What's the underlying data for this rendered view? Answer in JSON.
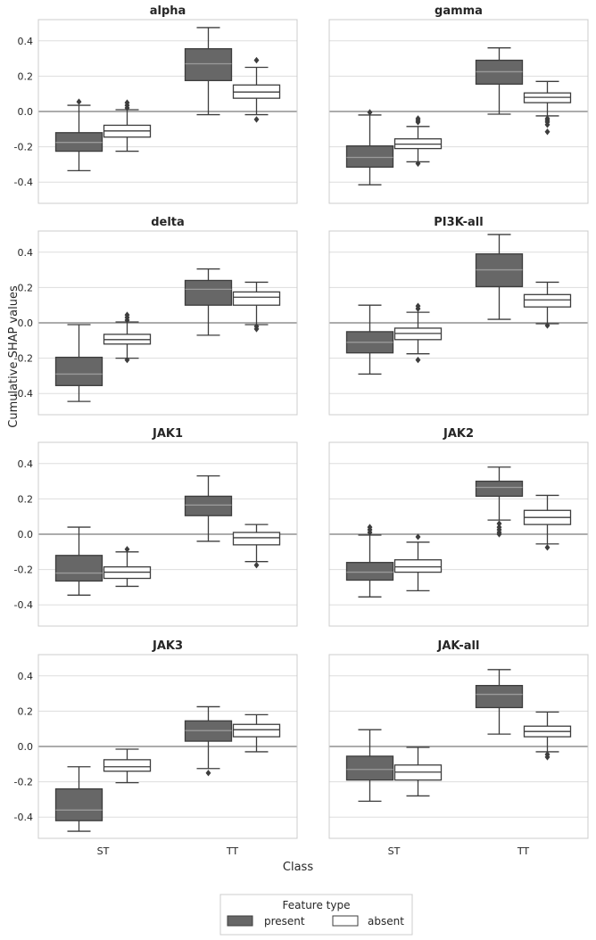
{
  "chart_data": {
    "type": "boxplot",
    "ylabel": "Cumulative SHAP values",
    "xlabel": "Class",
    "categories": [
      "ST",
      "TT"
    ],
    "ylim": [
      -0.52,
      0.52
    ],
    "yticks": [
      0.4,
      0.2,
      0.0,
      -0.2,
      -0.4
    ],
    "ytick_labels": [
      "0.4",
      "0.2",
      "0.0",
      "-0.2",
      "-0.4"
    ],
    "reference_line": 0.0,
    "grid": true,
    "legend": {
      "title": "Feature type",
      "placement": "bottom-center",
      "entries": [
        {
          "label": "present",
          "color": "#676767"
        },
        {
          "label": "absent",
          "color": "#ffffff"
        }
      ]
    },
    "colors": {
      "present": "#676767",
      "absent": "#ffffff",
      "edge": "#3d3d3d",
      "grid": "#dddddd",
      "frame": "#cccccc",
      "zero_line": "#7a7a7a"
    },
    "panels": [
      {
        "title": "alpha",
        "boxes": {
          "ST": {
            "present": {
              "whislo": -0.335,
              "q1": -0.225,
              "med": -0.175,
              "q3": -0.12,
              "whishi": 0.035,
              "fliers": [
                0.055
              ]
            },
            "absent": {
              "whislo": -0.225,
              "q1": -0.145,
              "med": -0.11,
              "q3": -0.078,
              "whishi": 0.01,
              "fliers": [
                0.02,
                0.035,
                0.05
              ]
            }
          },
          "TT": {
            "present": {
              "whislo": -0.018,
              "q1": 0.175,
              "med": 0.27,
              "q3": 0.355,
              "whishi": 0.475,
              "fliers": []
            },
            "absent": {
              "whislo": -0.018,
              "q1": 0.075,
              "med": 0.11,
              "q3": 0.15,
              "whishi": 0.25,
              "fliers": [
                0.29,
                -0.045
              ]
            }
          }
        }
      },
      {
        "title": "gamma",
        "boxes": {
          "ST": {
            "present": {
              "whislo": -0.415,
              "q1": -0.315,
              "med": -0.26,
              "q3": -0.195,
              "whishi": -0.02,
              "fliers": [
                -0.005
              ]
            },
            "absent": {
              "whislo": -0.285,
              "q1": -0.21,
              "med": -0.185,
              "q3": -0.155,
              "whishi": -0.085,
              "fliers": [
                -0.06,
                -0.05,
                -0.04,
                -0.295
              ]
            }
          },
          "TT": {
            "present": {
              "whislo": -0.015,
              "q1": 0.155,
              "med": 0.225,
              "q3": 0.29,
              "whishi": 0.36,
              "fliers": []
            },
            "absent": {
              "whislo": -0.025,
              "q1": 0.05,
              "med": 0.08,
              "q3": 0.105,
              "whishi": 0.17,
              "fliers": [
                -0.04,
                -0.05,
                -0.06,
                -0.075,
                -0.115
              ]
            }
          }
        }
      },
      {
        "title": "delta",
        "boxes": {
          "ST": {
            "present": {
              "whislo": -0.445,
              "q1": -0.355,
              "med": -0.29,
              "q3": -0.195,
              "whishi": -0.01,
              "fliers": []
            },
            "absent": {
              "whislo": -0.2,
              "q1": -0.12,
              "med": -0.095,
              "q3": -0.065,
              "whishi": 0.005,
              "fliers": [
                0.015,
                0.03,
                0.045,
                -0.21
              ]
            }
          },
          "TT": {
            "present": {
              "whislo": -0.07,
              "q1": 0.1,
              "med": 0.19,
              "q3": 0.24,
              "whishi": 0.305,
              "fliers": []
            },
            "absent": {
              "whislo": -0.01,
              "q1": 0.1,
              "med": 0.145,
              "q3": 0.175,
              "whishi": 0.23,
              "fliers": [
                -0.02,
                -0.035
              ]
            }
          }
        }
      },
      {
        "title": "PI3K-all",
        "boxes": {
          "ST": {
            "present": {
              "whislo": -0.29,
              "q1": -0.17,
              "med": -0.11,
              "q3": -0.05,
              "whishi": 0.1,
              "fliers": []
            },
            "absent": {
              "whislo": -0.175,
              "q1": -0.095,
              "med": -0.06,
              "q3": -0.03,
              "whishi": 0.06,
              "fliers": [
                0.08,
                0.095,
                -0.21
              ]
            }
          },
          "TT": {
            "present": {
              "whislo": 0.02,
              "q1": 0.205,
              "med": 0.3,
              "q3": 0.39,
              "whishi": 0.5,
              "fliers": []
            },
            "absent": {
              "whislo": -0.005,
              "q1": 0.09,
              "med": 0.13,
              "q3": 0.16,
              "whishi": 0.23,
              "fliers": [
                -0.015
              ]
            }
          }
        }
      },
      {
        "title": "JAK1",
        "boxes": {
          "ST": {
            "present": {
              "whislo": -0.345,
              "q1": -0.265,
              "med": -0.22,
              "q3": -0.12,
              "whishi": 0.04,
              "fliers": []
            },
            "absent": {
              "whislo": -0.295,
              "q1": -0.25,
              "med": -0.215,
              "q3": -0.185,
              "whishi": -0.1,
              "fliers": [
                -0.085
              ]
            }
          },
          "TT": {
            "present": {
              "whislo": -0.04,
              "q1": 0.105,
              "med": 0.165,
              "q3": 0.215,
              "whishi": 0.33,
              "fliers": []
            },
            "absent": {
              "whislo": -0.155,
              "q1": -0.06,
              "med": -0.02,
              "q3": 0.01,
              "whishi": 0.055,
              "fliers": [
                -0.175
              ]
            }
          }
        }
      },
      {
        "title": "JAK2",
        "boxes": {
          "ST": {
            "present": {
              "whislo": -0.355,
              "q1": -0.26,
              "med": -0.215,
              "q3": -0.16,
              "whishi": -0.005,
              "fliers": [
                0.01,
                0.025,
                0.04
              ]
            },
            "absent": {
              "whislo": -0.32,
              "q1": -0.215,
              "med": -0.185,
              "q3": -0.145,
              "whishi": -0.045,
              "fliers": [
                -0.015
              ]
            }
          },
          "TT": {
            "present": {
              "whislo": 0.08,
              "q1": 0.215,
              "med": 0.265,
              "q3": 0.3,
              "whishi": 0.38,
              "fliers": [
                0.0,
                0.01,
                0.025,
                0.04,
                0.06
              ]
            },
            "absent": {
              "whislo": -0.055,
              "q1": 0.055,
              "med": 0.095,
              "q3": 0.135,
              "whishi": 0.22,
              "fliers": [
                -0.075
              ]
            }
          }
        }
      },
      {
        "title": "JAK3",
        "boxes": {
          "ST": {
            "present": {
              "whislo": -0.48,
              "q1": -0.42,
              "med": -0.36,
              "q3": -0.24,
              "whishi": -0.115,
              "fliers": []
            },
            "absent": {
              "whislo": -0.205,
              "q1": -0.14,
              "med": -0.115,
              "q3": -0.075,
              "whishi": -0.015,
              "fliers": []
            }
          },
          "TT": {
            "present": {
              "whislo": -0.125,
              "q1": 0.03,
              "med": 0.09,
              "q3": 0.145,
              "whishi": 0.225,
              "fliers": [
                -0.15
              ]
            },
            "absent": {
              "whislo": -0.03,
              "q1": 0.055,
              "med": 0.095,
              "q3": 0.125,
              "whishi": 0.18,
              "fliers": []
            }
          }
        }
      },
      {
        "title": "JAK-all",
        "boxes": {
          "ST": {
            "present": {
              "whislo": -0.31,
              "q1": -0.19,
              "med": -0.13,
              "q3": -0.055,
              "whishi": 0.095,
              "fliers": []
            },
            "absent": {
              "whislo": -0.28,
              "q1": -0.19,
              "med": -0.145,
              "q3": -0.105,
              "whishi": -0.005,
              "fliers": []
            }
          },
          "TT": {
            "present": {
              "whislo": 0.07,
              "q1": 0.22,
              "med": 0.295,
              "q3": 0.345,
              "whishi": 0.435,
              "fliers": []
            },
            "absent": {
              "whislo": -0.03,
              "q1": 0.055,
              "med": 0.085,
              "q3": 0.115,
              "whishi": 0.195,
              "fliers": [
                -0.045,
                -0.06
              ]
            }
          }
        }
      }
    ]
  }
}
